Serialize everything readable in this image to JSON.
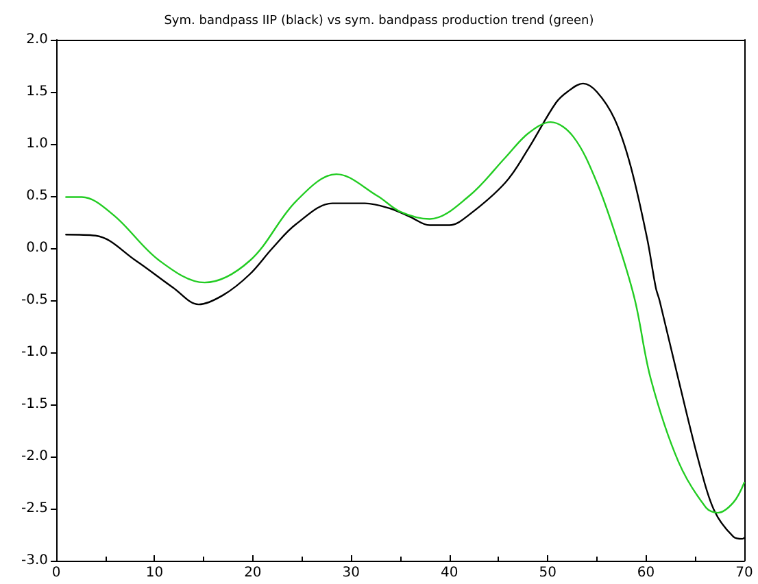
{
  "chart_data": {
    "type": "line",
    "title": "Sym. bandpass IIP (black) vs sym. bandpass production trend (green)",
    "xlim": [
      0,
      70
    ],
    "xticks": [
      0,
      10,
      20,
      30,
      40,
      50,
      60,
      70
    ],
    "ylim": [
      -3.0,
      2.0
    ],
    "yticks": [
      {
        "value": -3,
        "label": "-3.0"
      },
      {
        "value": -2.5,
        "label": "-2.5"
      },
      {
        "value": -2,
        "label": "-2.0"
      },
      {
        "value": -1.5,
        "label": "-1.5"
      },
      {
        "value": -1,
        "label": "-1.0"
      },
      {
        "value": -0.5,
        "label": "-0.5"
      },
      {
        "value": 0,
        "label": "0.0"
      },
      {
        "value": 0.5,
        "label": "0.5"
      },
      {
        "value": 1,
        "label": "1.0"
      },
      {
        "value": 1.5,
        "label": "1.5"
      },
      {
        "value": 2,
        "label": "2.0"
      }
    ],
    "grid": false,
    "marker": "none",
    "line_style": "solid",
    "series": [
      {
        "color": "#000000",
        "x": [
          1,
          4,
          8.1,
          11.9,
          14.5,
          17,
          19.7,
          22,
          24.4,
          28.1,
          31.4,
          34,
          36,
          38,
          40,
          42,
          45.7,
          48,
          50.8,
          52,
          53.6,
          55,
          56.8,
          58.4,
          60.1,
          61,
          61.4,
          63.3,
          65.6,
          67,
          68.9,
          69.8,
          70
        ],
        "values": [
          0.13,
          0.12,
          -0.12,
          -0.38,
          -0.54,
          -0.45,
          -0.25,
          0,
          0.23,
          0.43,
          0.43,
          0.38,
          0.3,
          0.22,
          0.22,
          0.32,
          0.63,
          0.95,
          1.39,
          1.5,
          1.58,
          1.5,
          1.24,
          0.8,
          0.1,
          -0.38,
          -0.51,
          -1.26,
          -2.13,
          -2.53,
          -2.77,
          -2.79,
          -2.78
        ]
      },
      {
        "color": "#22cc22",
        "x": [
          1,
          2.6,
          5.8,
          10.5,
          15.1,
          19.7,
          24.4,
          28.5,
          32.7,
          35,
          38,
          42,
          45.7,
          48,
          50.3,
          52.6,
          55,
          57.3,
          58.9,
          60.5,
          63.3,
          66.1,
          67.3,
          68.9,
          70
        ],
        "values": [
          0.49,
          0.49,
          0.32,
          -0.12,
          -0.33,
          -0.12,
          0.45,
          0.71,
          0.5,
          0.35,
          0.28,
          0.5,
          0.87,
          1.1,
          1.21,
          1.07,
          0.63,
          0.01,
          -0.51,
          -1.26,
          -2.05,
          -2.49,
          -2.54,
          -2.44,
          -2.25
        ]
      }
    ]
  }
}
